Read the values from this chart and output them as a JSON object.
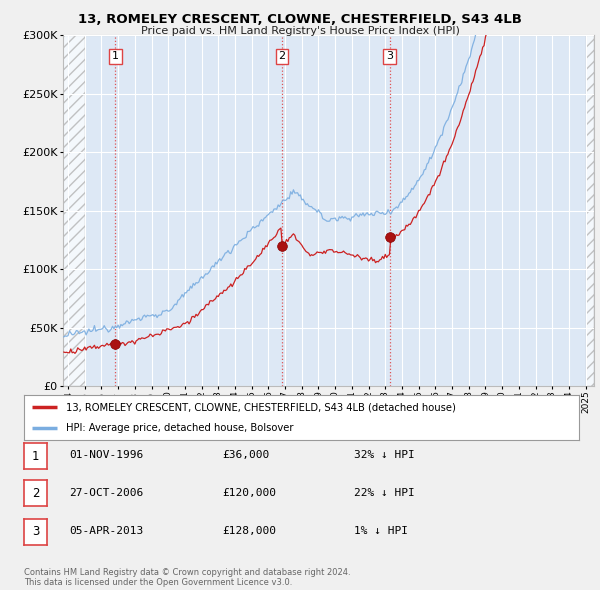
{
  "title": "13, ROMELEY CRESCENT, CLOWNE, CHESTERFIELD, S43 4LB",
  "subtitle": "Price paid vs. HM Land Registry's House Price Index (HPI)",
  "background_color": "#f0f0f0",
  "plot_bg_color": "#dde8f5",
  "grid_color": "#ffffff",
  "sale_dates": [
    1996.83,
    2006.82,
    2013.26
  ],
  "sale_prices": [
    36000,
    120000,
    128000
  ],
  "sale_labels": [
    "1",
    "2",
    "3"
  ],
  "legend_property": "13, ROMELEY CRESCENT, CLOWNE, CHESTERFIELD, S43 4LB (detached house)",
  "legend_hpi": "HPI: Average price, detached house, Bolsover",
  "table_rows": [
    {
      "num": "1",
      "date": "01-NOV-1996",
      "price": "£36,000",
      "hpi": "32% ↓ HPI"
    },
    {
      "num": "2",
      "date": "27-OCT-2006",
      "price": "£120,000",
      "hpi": "22% ↓ HPI"
    },
    {
      "num": "3",
      "date": "05-APR-2013",
      "price": "£128,000",
      "hpi": "1% ↓ HPI"
    }
  ],
  "footer": "Contains HM Land Registry data © Crown copyright and database right 2024.\nThis data is licensed under the Open Government Licence v3.0.",
  "hpi_color": "#7aade0",
  "price_color": "#cc2222",
  "sale_dot_color": "#aa1111",
  "dashed_line_color": "#dd4444",
  "ylim": [
    0,
    300000
  ],
  "xlim_start": 1993.7,
  "xlim_end": 2025.5,
  "hatch_end": 1995.0
}
